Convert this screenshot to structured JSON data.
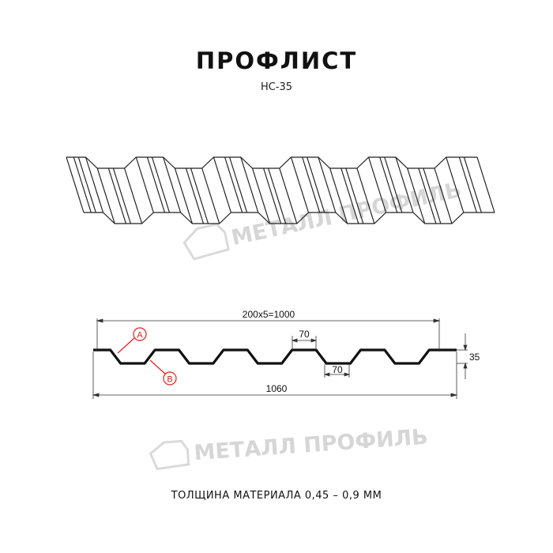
{
  "header": {
    "title": "ПРОФЛИСТ",
    "subtitle": "НС-35"
  },
  "watermark": {
    "text": "МЕТАЛЛ ПРОФИЛЬ",
    "color": "#d6d6d6"
  },
  "drawing": {
    "dimensions": {
      "pitch_total": "200x5=1000",
      "top_flat": "70",
      "bottom_flat": "70",
      "height": "35",
      "overall_width": "1060"
    },
    "callouts": [
      {
        "label": "A",
        "color": "#e02020"
      },
      {
        "label": "B",
        "color": "#e02020"
      }
    ]
  },
  "footer": {
    "material_thickness": "ТОЛЩИНА МАТЕРИАЛА 0,45 – 0,9 ММ"
  }
}
